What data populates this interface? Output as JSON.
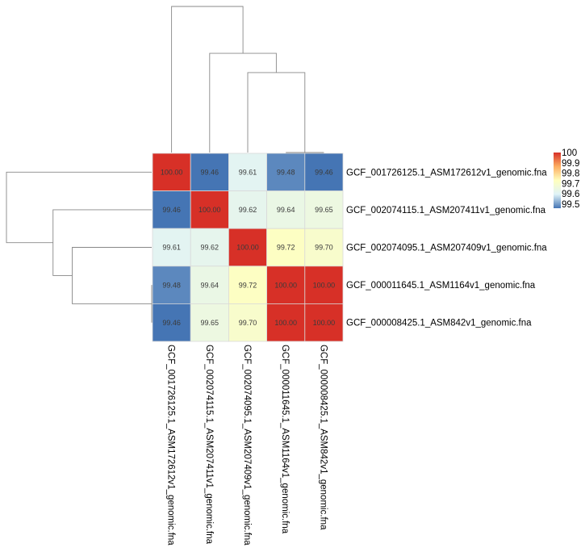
{
  "chart_data": {
    "type": "heatmap",
    "title": "",
    "row_labels": [
      "GCF_001726125.1_ASM172612v1_genomic.fna",
      "GCF_002074115.1_ASM207411v1_genomic.fna",
      "GCF_002074095.1_ASM207409v1_genomic.fna",
      "GCF_000011645.1_ASM1164v1_genomic.fna",
      "GCF_000008425.1_ASM842v1_genomic.fna"
    ],
    "col_labels": [
      "GCF_001726125.1_ASM172612v1_genomic.fna",
      "GCF_002074115.1_ASM207411v1_genomic.fna",
      "GCF_002074095.1_ASM207409v1_genomic.fna",
      "GCF_000011645.1_ASM1164v1_genomic.fna",
      "GCF_000008425.1_ASM842v1_genomic.fna"
    ],
    "values": [
      [
        100.0,
        99.46,
        99.61,
        99.48,
        99.46
      ],
      [
        99.46,
        100.0,
        99.62,
        99.64,
        99.65
      ],
      [
        99.61,
        99.62,
        100.0,
        99.72,
        99.7
      ],
      [
        99.48,
        99.64,
        99.72,
        100.0,
        100.0
      ],
      [
        99.46,
        99.65,
        99.7,
        100.0,
        100.0
      ]
    ],
    "value_format_decimals": 2,
    "color_scale": {
      "min": 99.46,
      "max": 100.0,
      "stops": [
        "#4575b4",
        "#e0f3f8",
        "#ffffbf",
        "#fdae61",
        "#d73027"
      ]
    },
    "legend": {
      "ticks": [
        "100",
        "99.9",
        "99.8",
        "99.7",
        "99.6",
        "99.5"
      ],
      "tick_values": [
        100,
        99.9,
        99.8,
        99.7,
        99.6,
        99.5
      ],
      "placement": "top-right"
    },
    "col_dendrogram_merges": [
      {
        "a": 3,
        "b": 4,
        "height": 0.0
      },
      {
        "a": 2,
        "b": "m0",
        "height": 0.29
      },
      {
        "a": 1,
        "b": "m1",
        "height": 0.36
      },
      {
        "a": 0,
        "b": "m2",
        "height": 0.53
      }
    ],
    "row_dendrogram_merges": [
      {
        "a": 3,
        "b": 4,
        "height": 0.0
      },
      {
        "a": 2,
        "b": "m0",
        "height": 0.29
      },
      {
        "a": 1,
        "b": "m1",
        "height": 0.36
      },
      {
        "a": 0,
        "b": "m2",
        "height": 0.53
      }
    ]
  }
}
